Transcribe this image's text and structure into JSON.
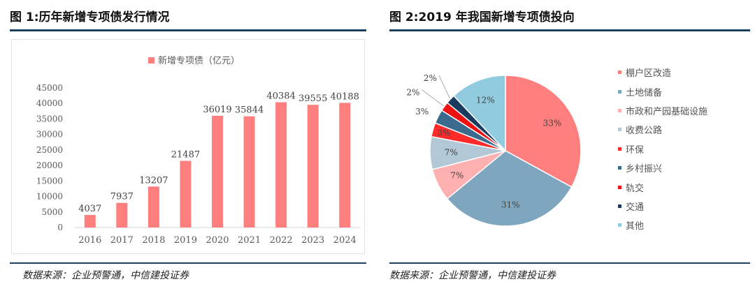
{
  "left": {
    "title": "图 1:历年新增专项债发行情况",
    "source": "数据来源：企业预警通，中信建投证券"
  },
  "right": {
    "title": "图 2:2019 年我国新增专项债投向",
    "source": "数据来源：企业预警通，中信建投证券"
  },
  "colors": {
    "rule": "#1f3f5f",
    "bar": "#ff7f7f"
  },
  "chart_data": [
    {
      "type": "bar",
      "title": "",
      "legend": "新增专项债（亿元）",
      "categories": [
        "2016",
        "2017",
        "2018",
        "2019",
        "2020",
        "2021",
        "2022",
        "2023",
        "2024"
      ],
      "values": [
        4037,
        7937,
        13207,
        21487,
        36019,
        35844,
        40384,
        39555,
        40188
      ],
      "value_labels": [
        "4037",
        "7937",
        "13207",
        "21487",
        "36019",
        "35844",
        "40384",
        "39555",
        "40188"
      ],
      "yticks": [
        "0",
        "5000",
        "10000",
        "15000",
        "20000",
        "25000",
        "30000",
        "35000",
        "40000",
        "45000"
      ],
      "ylim": [
        0,
        45000
      ],
      "grid": false,
      "legend_position": "top"
    },
    {
      "type": "pie",
      "title": "",
      "legend_position": "right",
      "slices": [
        {
          "name": "棚户区改造",
          "value": 33,
          "label": "33%",
          "color": "#ff7f7f"
        },
        {
          "name": "土地储备",
          "value": 31,
          "label": "31%",
          "color": "#7fa6bf"
        },
        {
          "name": "市政和产园基础设施",
          "value": 7,
          "label": "7%",
          "color": "#ffb0b0"
        },
        {
          "name": "收费公路",
          "value": 7,
          "label": "7%",
          "color": "#b3c8d6"
        },
        {
          "name": "环保",
          "value": 3,
          "label": "3%",
          "color": "#ff2a2a"
        },
        {
          "name": "乡村振兴",
          "value": 3,
          "label": "3%",
          "color": "#3a6b8f"
        },
        {
          "name": "轨交",
          "value": 2,
          "label": "2%",
          "color": "#ee1111"
        },
        {
          "name": "交通",
          "value": 2,
          "label": "2%",
          "color": "#1a3a60"
        },
        {
          "name": "其他",
          "value": 12,
          "label": "12%",
          "color": "#90cbe0"
        }
      ]
    }
  ]
}
